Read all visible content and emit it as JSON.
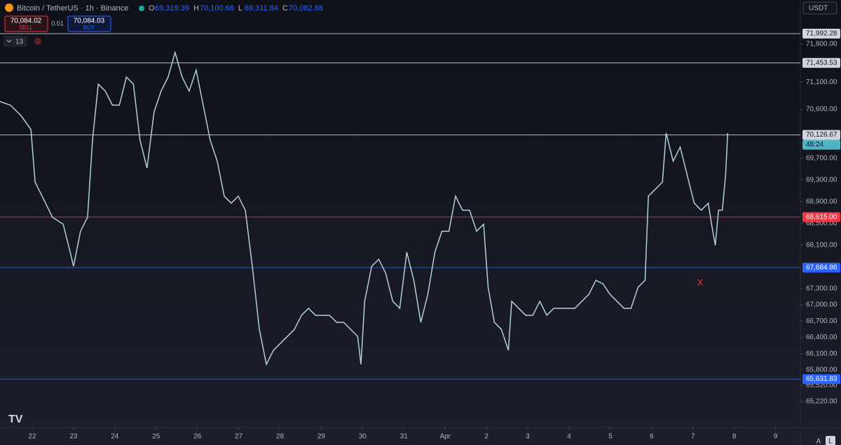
{
  "chart_data": {
    "type": "line",
    "title": "Bitcoin / TetherUS · 1h · Binance",
    "ohlc": [
      {
        "key": "O",
        "value": "69,319.39"
      },
      {
        "key": "H",
        "value": "70,100.66"
      },
      {
        "key": "L",
        "value": "69,311.84"
      },
      {
        "key": "C",
        "value": "70,082.88"
      }
    ],
    "sell": {
      "price": "70,084.02",
      "label": "SELL"
    },
    "quantity": "0.01",
    "buy": {
      "price": "70,084.03",
      "label": "BUY"
    },
    "indicator_count": "13",
    "currency": "USDT",
    "countdown": "48:24",
    "annotation": "X",
    "axis_buttons": [
      "A",
      "L"
    ],
    "x": [
      -0.78,
      -0.53,
      -0.27,
      -0.03,
      0.07,
      0.24,
      0.49,
      0.75,
      0.92,
      1.0,
      1.17,
      1.34,
      1.46,
      1.6,
      1.77,
      1.94,
      2.11,
      2.28,
      2.45,
      2.61,
      2.78,
      2.95,
      3.12,
      3.29,
      3.46,
      3.63,
      3.8,
      3.97,
      4.14,
      4.31,
      4.48,
      4.65,
      4.82,
      4.99,
      5.16,
      5.33,
      5.5,
      5.67,
      5.84,
      6.01,
      6.18,
      6.35,
      6.52,
      6.69,
      6.86,
      7.03,
      7.2,
      7.37,
      7.54,
      7.71,
      7.88,
      7.96,
      8.05,
      8.22,
      8.39,
      8.56,
      8.73,
      8.9,
      9.07,
      9.24,
      9.41,
      9.58,
      9.75,
      9.92,
      10.09,
      10.25,
      10.42,
      10.59,
      10.76,
      10.93,
      11.04,
      11.19,
      11.36,
      11.53,
      11.61,
      11.78,
      11.95,
      12.12,
      12.29,
      12.46,
      12.63,
      12.8,
      12.97,
      13.14,
      13.31,
      13.48,
      13.65,
      13.82,
      13.99,
      14.16,
      14.33,
      14.5,
      14.67,
      14.84,
      14.92,
      15.09,
      15.26,
      15.35,
      15.52,
      15.69,
      15.86,
      16.03,
      16.2,
      16.37,
      16.45,
      16.54,
      16.62,
      16.71,
      16.79,
      16.84
    ],
    "series": [
      {
        "name": "BTCUSDT",
        "color": "#b2cfdc",
        "values": [
          70740,
          70676,
          70482,
          70225,
          69257,
          68999,
          68612,
          68483,
          67967,
          67709,
          68354,
          68612,
          70031,
          71063,
          70934,
          70676,
          70676,
          71192,
          71063,
          70031,
          69515,
          70547,
          70934,
          71192,
          71644,
          71192,
          70934,
          71321,
          70676,
          70031,
          69644,
          68999,
          68870,
          68999,
          68741,
          67709,
          66548,
          65903,
          66161,
          66290,
          66419,
          66548,
          66806,
          66935,
          66806,
          66806,
          66806,
          66677,
          66677,
          66548,
          66419,
          65903,
          67064,
          67709,
          67838,
          67580,
          67064,
          66935,
          67967,
          67451,
          66677,
          67193,
          67967,
          68354,
          68354,
          68999,
          68741,
          68741,
          68354,
          68483,
          67322,
          66677,
          66548,
          66161,
          67064,
          66935,
          66806,
          66806,
          67064,
          66806,
          66935,
          66935,
          66935,
          66935,
          67064,
          67193,
          67451,
          67387,
          67193,
          67064,
          66935,
          66935,
          67322,
          67451,
          68999,
          69128,
          69257,
          70160,
          69644,
          69902,
          69386,
          68870,
          68741,
          68870,
          68483,
          68096,
          68741,
          68741,
          69386,
          70160
        ]
      }
    ],
    "xlim": [
      -0.78,
      18.6
    ],
    "ylim": [
      64741,
      72611
    ],
    "xticks": [
      {
        "value": 0,
        "label": "22"
      },
      {
        "value": 1,
        "label": "23"
      },
      {
        "value": 2,
        "label": "24"
      },
      {
        "value": 3,
        "label": "25"
      },
      {
        "value": 4,
        "label": "26"
      },
      {
        "value": 5,
        "label": "27"
      },
      {
        "value": 6,
        "label": "28"
      },
      {
        "value": 7,
        "label": "29"
      },
      {
        "value": 8,
        "label": "30"
      },
      {
        "value": 9,
        "label": "31"
      },
      {
        "value": 10,
        "label": "Apr"
      },
      {
        "value": 11,
        "label": "2"
      },
      {
        "value": 12,
        "label": "3"
      },
      {
        "value": 13,
        "label": "4"
      },
      {
        "value": 14,
        "label": "5"
      },
      {
        "value": 15,
        "label": "6"
      },
      {
        "value": 16,
        "label": "7"
      },
      {
        "value": 17,
        "label": "8"
      },
      {
        "value": 18,
        "label": "9"
      }
    ],
    "yticks": [
      {
        "value": 71800,
        "label": "71,800.00"
      },
      {
        "value": 71100,
        "label": "71,100.00"
      },
      {
        "value": 70600,
        "label": "70,600.00"
      },
      {
        "value": 69700,
        "label": "69,700.00"
      },
      {
        "value": 69300,
        "label": "69,300.00"
      },
      {
        "value": 68900,
        "label": "68,900.00"
      },
      {
        "value": 68500,
        "label": "68,500.00"
      },
      {
        "value": 68100,
        "label": "68,100.00"
      },
      {
        "value": 67300,
        "label": "67,300.00"
      },
      {
        "value": 67000,
        "label": "67,000.00"
      },
      {
        "value": 66700,
        "label": "66,700.00"
      },
      {
        "value": 66400,
        "label": "66,400.00"
      },
      {
        "value": 66100,
        "label": "66,100.00"
      },
      {
        "value": 65800,
        "label": "65,800.00"
      },
      {
        "value": 65520,
        "label": "65,520.00"
      },
      {
        "value": 65220,
        "label": "65,220.00"
      }
    ],
    "levels": [
      {
        "value": 71992.28,
        "label": "71,992.28",
        "color": "#d1d4dc"
      },
      {
        "value": 71453.53,
        "label": "71,453.53",
        "color": "#d1d4dc"
      },
      {
        "value": 70126.67,
        "label": "70,126.67",
        "color": "#d1d4dc"
      },
      {
        "value": 68615.0,
        "label": "68,615.00",
        "color": "#f23645"
      },
      {
        "value": 67684.86,
        "label": "67,684.86",
        "color": "#2962ff"
      },
      {
        "value": 65631.83,
        "label": "65,631.83",
        "color": "#2962ff"
      }
    ]
  }
}
